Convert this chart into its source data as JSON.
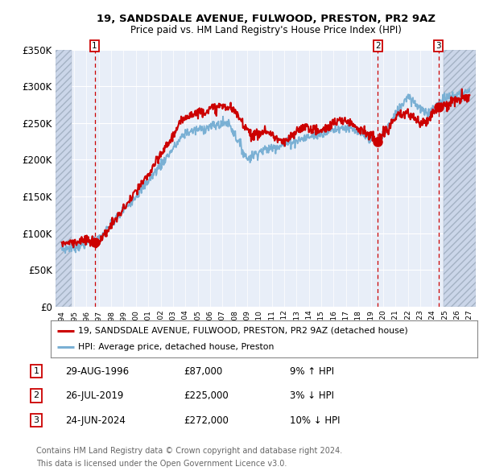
{
  "title": "19, SANDSDALE AVENUE, FULWOOD, PRESTON, PR2 9AZ",
  "subtitle": "Price paid vs. HM Land Registry's House Price Index (HPI)",
  "ylim": [
    0,
    350000
  ],
  "xlim_start": 1993.5,
  "xlim_end": 2027.5,
  "sale_dates": [
    1996.66,
    2019.57,
    2024.48
  ],
  "sale_prices": [
    87000,
    225000,
    272000
  ],
  "sale_labels": [
    "1",
    "2",
    "3"
  ],
  "legend_line1": "19, SANDSDALE AVENUE, FULWOOD, PRESTON, PR2 9AZ (detached house)",
  "legend_line2": "HPI: Average price, detached house, Preston",
  "table_rows": [
    [
      "1",
      "29-AUG-1996",
      "£87,000",
      "9% ↑ HPI"
    ],
    [
      "2",
      "26-JUL-2019",
      "£225,000",
      "3% ↓ HPI"
    ],
    [
      "3",
      "24-JUN-2024",
      "£272,000",
      "10% ↓ HPI"
    ]
  ],
  "footnote1": "Contains HM Land Registry data © Crown copyright and database right 2024.",
  "footnote2": "This data is licensed under the Open Government Licence v3.0.",
  "red_color": "#cc0000",
  "blue_color": "#7ab0d4",
  "plot_bg": "#e8eef8",
  "hatch_color": "#c8d4e8"
}
